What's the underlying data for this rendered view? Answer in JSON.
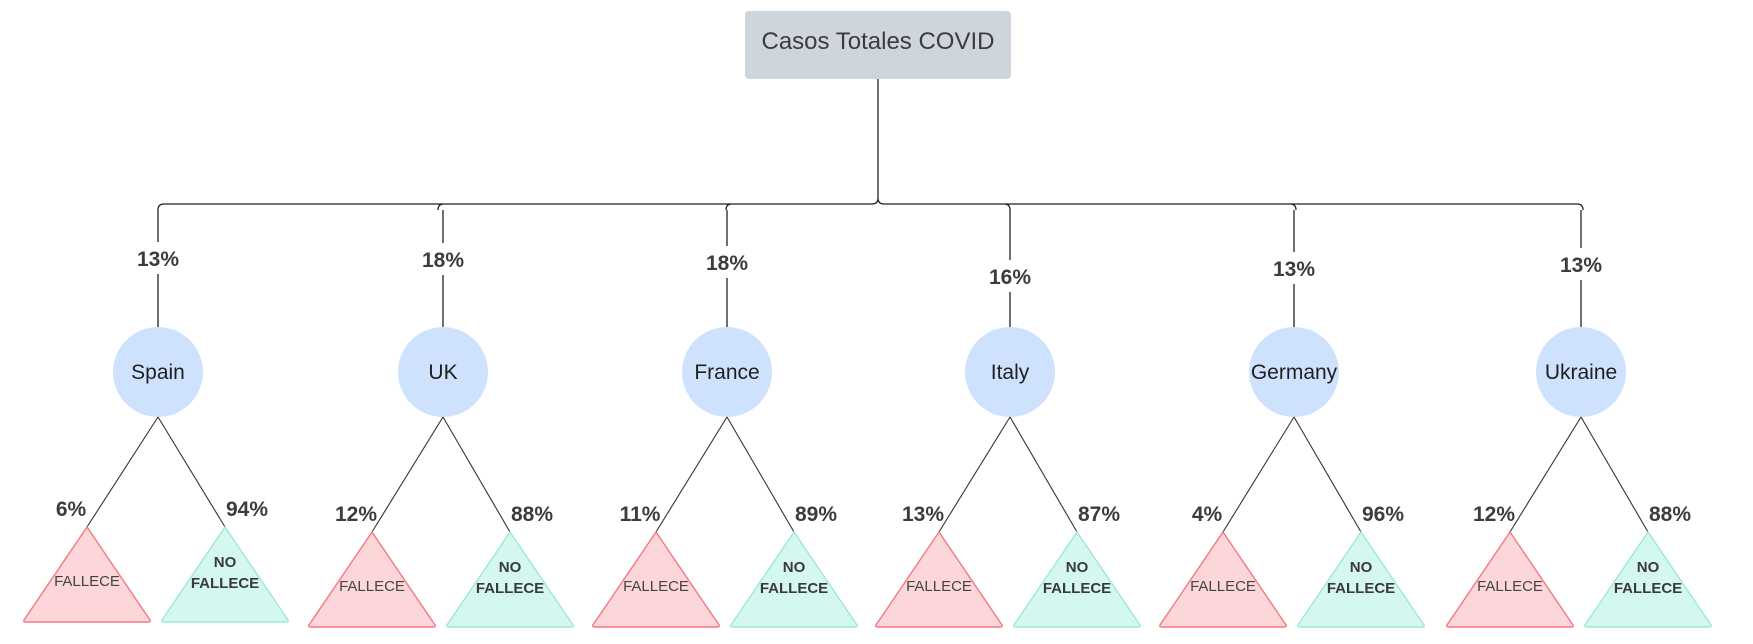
{
  "root": {
    "label": "Casos Totales COVID"
  },
  "outcome_labels": {
    "dead": "FALLECE",
    "alive_line1": "NO",
    "alive_line2": "FALLECE"
  },
  "countries": [
    {
      "name": "Spain",
      "share": "13%",
      "dead": "6%",
      "alive": "94%"
    },
    {
      "name": "UK",
      "share": "18%",
      "dead": "12%",
      "alive": "88%"
    },
    {
      "name": "France",
      "share": "18%",
      "dead": "11%",
      "alive": "89%"
    },
    {
      "name": "Italy",
      "share": "16%",
      "dead": "13%",
      "alive": "87%"
    },
    {
      "name": "Germany",
      "share": "13%",
      "dead": "4%",
      "alive": "96%"
    },
    {
      "name": "Ukraine",
      "share": "13%",
      "dead": "12%",
      "alive": "88%"
    }
  ],
  "colors": {
    "root_box": "#cfd5dc",
    "country_circle": "#cfe2fd",
    "dead_fill": "#fcd6d9",
    "dead_stroke": "#f07a80",
    "alive_fill": "#d4f7f0",
    "alive_stroke": "#9ee8d8"
  }
}
